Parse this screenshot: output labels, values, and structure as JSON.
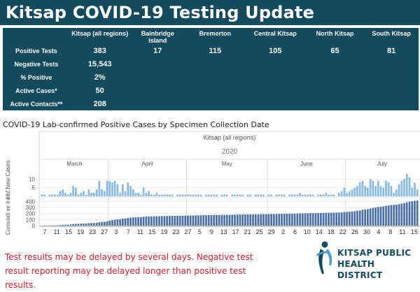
{
  "header": {
    "title": "Kitsap COVID-19 Testing Update"
  },
  "table": {
    "columns": [
      "",
      "Kitsap (all regions)",
      "Bainbridge Island",
      "Bremerton",
      "Central Kitsap",
      "North Kitsap",
      "South Kitsap"
    ],
    "rows": [
      {
        "label": "Positive Tests",
        "values": [
          "383",
          "17",
          "115",
          "105",
          "65",
          "81"
        ]
      },
      {
        "label": "Negative Tests",
        "values": [
          "15,543",
          "",
          "",
          "",
          "",
          ""
        ]
      },
      {
        "label": "% Positive",
        "values": [
          "2%",
          "",
          "",
          "",
          "",
          ""
        ]
      },
      {
        "label": "Active Cases*",
        "values": [
          "50",
          "",
          "",
          "",
          "",
          ""
        ]
      },
      {
        "label": "Active Contacts**",
        "values": [
          "208",
          "",
          "",
          "",
          "",
          ""
        ]
      }
    ]
  },
  "chart": {
    "subtitle": "COVID-19 Lab-confirmed Positive Cases by Specimen Collection Date"
  },
  "chart_data": {
    "type": "bar",
    "title": "Kitsap (all regions)",
    "year": "2020",
    "months": [
      "March",
      "April",
      "May",
      "June",
      "July"
    ],
    "panels": [
      {
        "name": "# of New Cases",
        "ylabel": "# of New Cases",
        "yticks": [
          5,
          10
        ],
        "ylim": [
          0,
          15
        ],
        "values": [
          1,
          1,
          0,
          1,
          1,
          1,
          1,
          3,
          4,
          2,
          1,
          2,
          6,
          5,
          1,
          2,
          3,
          1,
          4,
          2,
          2,
          4,
          9,
          4,
          3,
          9,
          9,
          8,
          9,
          7,
          2,
          7,
          3,
          8,
          6,
          4,
          2,
          2,
          1,
          5,
          2,
          3,
          1,
          1,
          2,
          1,
          1,
          1,
          1,
          1,
          1,
          0,
          1,
          1,
          1,
          1,
          1,
          1,
          1,
          1,
          1,
          1,
          0,
          1,
          1,
          1,
          1,
          1,
          0,
          1,
          1,
          1,
          0,
          1,
          1,
          1,
          1,
          1,
          0,
          1,
          1,
          0,
          1,
          1,
          1,
          1,
          0,
          1,
          1,
          0,
          1,
          1,
          1,
          1,
          0,
          1,
          1,
          1,
          1,
          2,
          1,
          1,
          1,
          1,
          1,
          0,
          1,
          1,
          1,
          2,
          1,
          1,
          1,
          0,
          2,
          3,
          5,
          2,
          3,
          4,
          5,
          6,
          8,
          9,
          6,
          5,
          10,
          9,
          6,
          9,
          6,
          5,
          9,
          8,
          6,
          2,
          4,
          7,
          9,
          10,
          13,
          11,
          5,
          8,
          4
        ]
      },
      {
        "name": "Cumulative # of Cases",
        "ylabel": "Cumulati ve # of ...",
        "yticks": [
          0,
          100,
          200,
          300,
          400
        ],
        "ylim": [
          0,
          450
        ]
      }
    ],
    "xlabels": [
      "7",
      "11",
      "15",
      "19",
      "23",
      "27",
      "3",
      "7",
      "11",
      "15",
      "19",
      "23",
      "27",
      "5",
      "9",
      "13",
      "17",
      "21",
      "25",
      "29",
      "2",
      "6",
      "10",
      "14",
      "18",
      "22",
      "26",
      "30",
      "4",
      "8",
      "11",
      "15"
    ]
  },
  "footer": {
    "note": "Test results may be delayed by several days. Negative test result reporting may be delayed longer than positive test results.",
    "logo_line1": "KITSAP PUBLIC",
    "logo_line2": "HEALTH DISTRICT"
  },
  "colors": {
    "brand": "#134a5e",
    "bar_light": "#89b9e0",
    "bar_dark": "#4a6fa5",
    "alert": "#d7212b"
  }
}
